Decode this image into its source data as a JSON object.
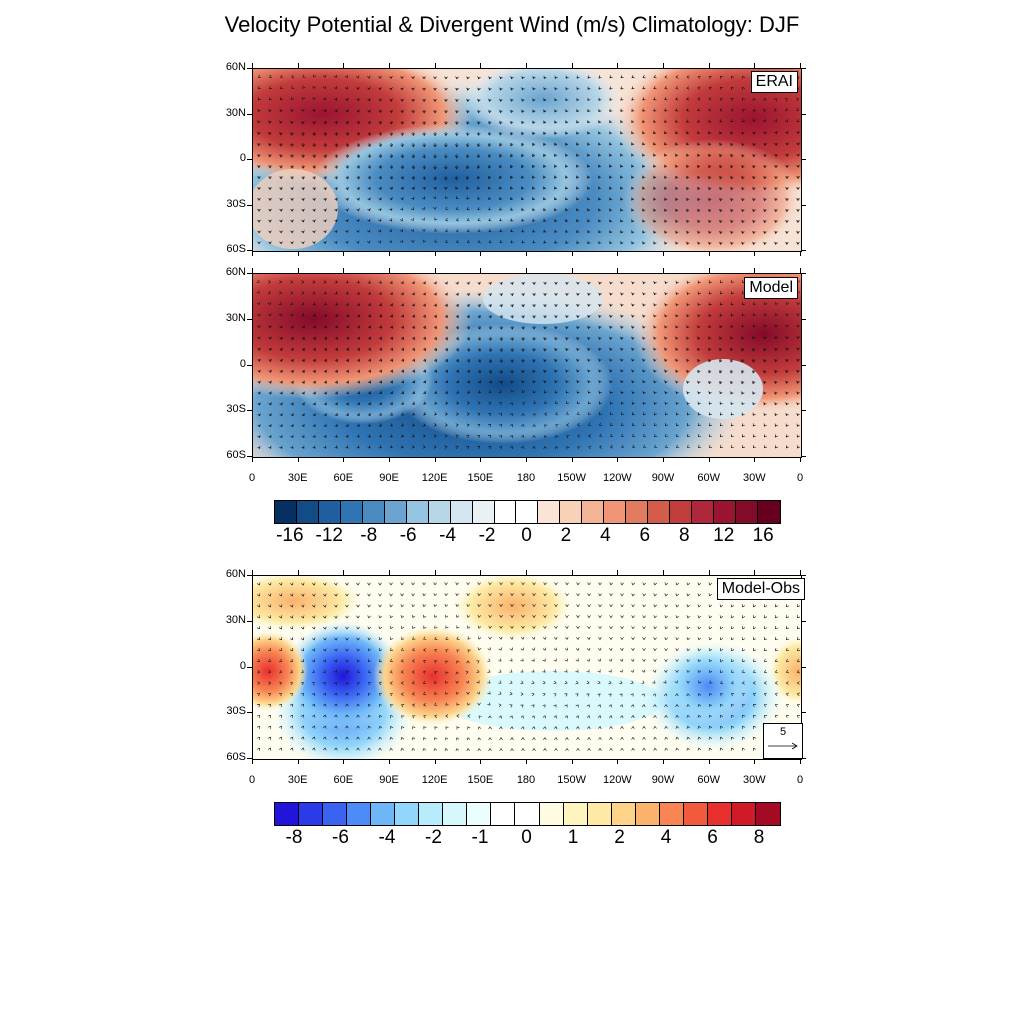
{
  "title": "Velocity Potential & Divergent Wind (m/s) Climatology: DJF",
  "lat_labels": [
    "60N",
    "30N",
    "0",
    "30S",
    "60S"
  ],
  "lon_labels": [
    "0",
    "30E",
    "60E",
    "90E",
    "120E",
    "150E",
    "180",
    "150W",
    "120W",
    "90W",
    "60W",
    "30W",
    "0"
  ],
  "panels": [
    {
      "id": "erai",
      "label": "ERAI"
    },
    {
      "id": "model",
      "label": "Model"
    },
    {
      "id": "diff",
      "label": "Model-Obs"
    }
  ],
  "colorbar_top": {
    "labels": [
      "-16",
      "-12",
      "-8",
      "-6",
      "-4",
      "-2",
      "0",
      "2",
      "4",
      "6",
      "8",
      "12",
      "16"
    ],
    "colors": [
      "#053061",
      "#134b87",
      "#1f5f9f",
      "#2f74b3",
      "#4a8cc2",
      "#6aa4cf",
      "#94c4df",
      "#b7d6e8",
      "#d6e6f0",
      "#eaf1f5",
      "#ffffff",
      "#ffffff",
      "#fbe4d6",
      "#f9d0b8",
      "#f5b395",
      "#f09676",
      "#e27a5f",
      "#d35c4a",
      "#c23c3c",
      "#b0263a",
      "#9a1431",
      "#830a29",
      "#67001f"
    ]
  },
  "colorbar_bottom": {
    "labels": [
      "-8",
      "-6",
      "-4",
      "-2",
      "-1",
      "0",
      "1",
      "2",
      "4",
      "6",
      "8"
    ],
    "colors": [
      "#2015d8",
      "#2b3be8",
      "#3a63f2",
      "#4d8bf6",
      "#6db7f9",
      "#92d6fb",
      "#b6ecfc",
      "#d6f8fd",
      "#ecfdfe",
      "#ffffff",
      "#ffffff",
      "#fefbe0",
      "#fff3c0",
      "#feeaa4",
      "#fdd38a",
      "#fbb26d",
      "#f88553",
      "#f25a3e",
      "#e8302f",
      "#d01a28",
      "#a50a25"
    ]
  },
  "ref_vector_label": "5"
}
